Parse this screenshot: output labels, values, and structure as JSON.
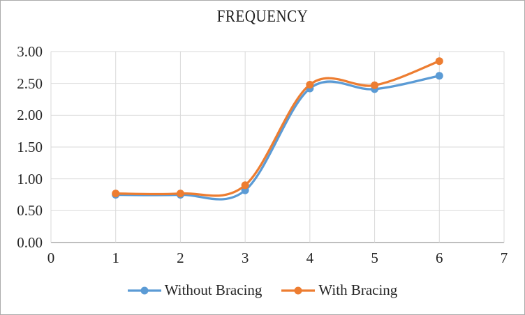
{
  "window": {
    "background": "#FFFFFF",
    "border_color": "#ABABAB"
  },
  "chart_data": {
    "type": "line",
    "title": "FREQUENCY",
    "x": [
      1,
      2,
      3,
      4,
      5,
      6
    ],
    "series": [
      {
        "name": "Without Bracing",
        "color": "#5B9BD5",
        "values": [
          0.75,
          0.75,
          0.82,
          2.42,
          2.41,
          2.62
        ]
      },
      {
        "name": "With Bracing",
        "color": "#ED7D31",
        "values": [
          0.77,
          0.77,
          0.9,
          2.48,
          2.47,
          2.85
        ]
      }
    ],
    "xlabel": "",
    "ylabel": "",
    "xlim": [
      0,
      7
    ],
    "ylim": [
      0,
      3
    ],
    "x_ticks": [
      "0",
      "1",
      "2",
      "3",
      "4",
      "5",
      "6",
      "7"
    ],
    "y_ticks": [
      "0.00",
      "0.50",
      "1.00",
      "1.50",
      "2.00",
      "2.50",
      "3.00"
    ],
    "grid": true,
    "smooth_lines": true,
    "marker": "circle",
    "legend_position": "bottom",
    "legend": [
      "Without Bracing",
      "With Bracing"
    ],
    "colors": {
      "gridline": "#D9D9D9",
      "axis_line": "#BFBFBF",
      "text": "#262626",
      "title_text": "#1F1F1F"
    }
  }
}
